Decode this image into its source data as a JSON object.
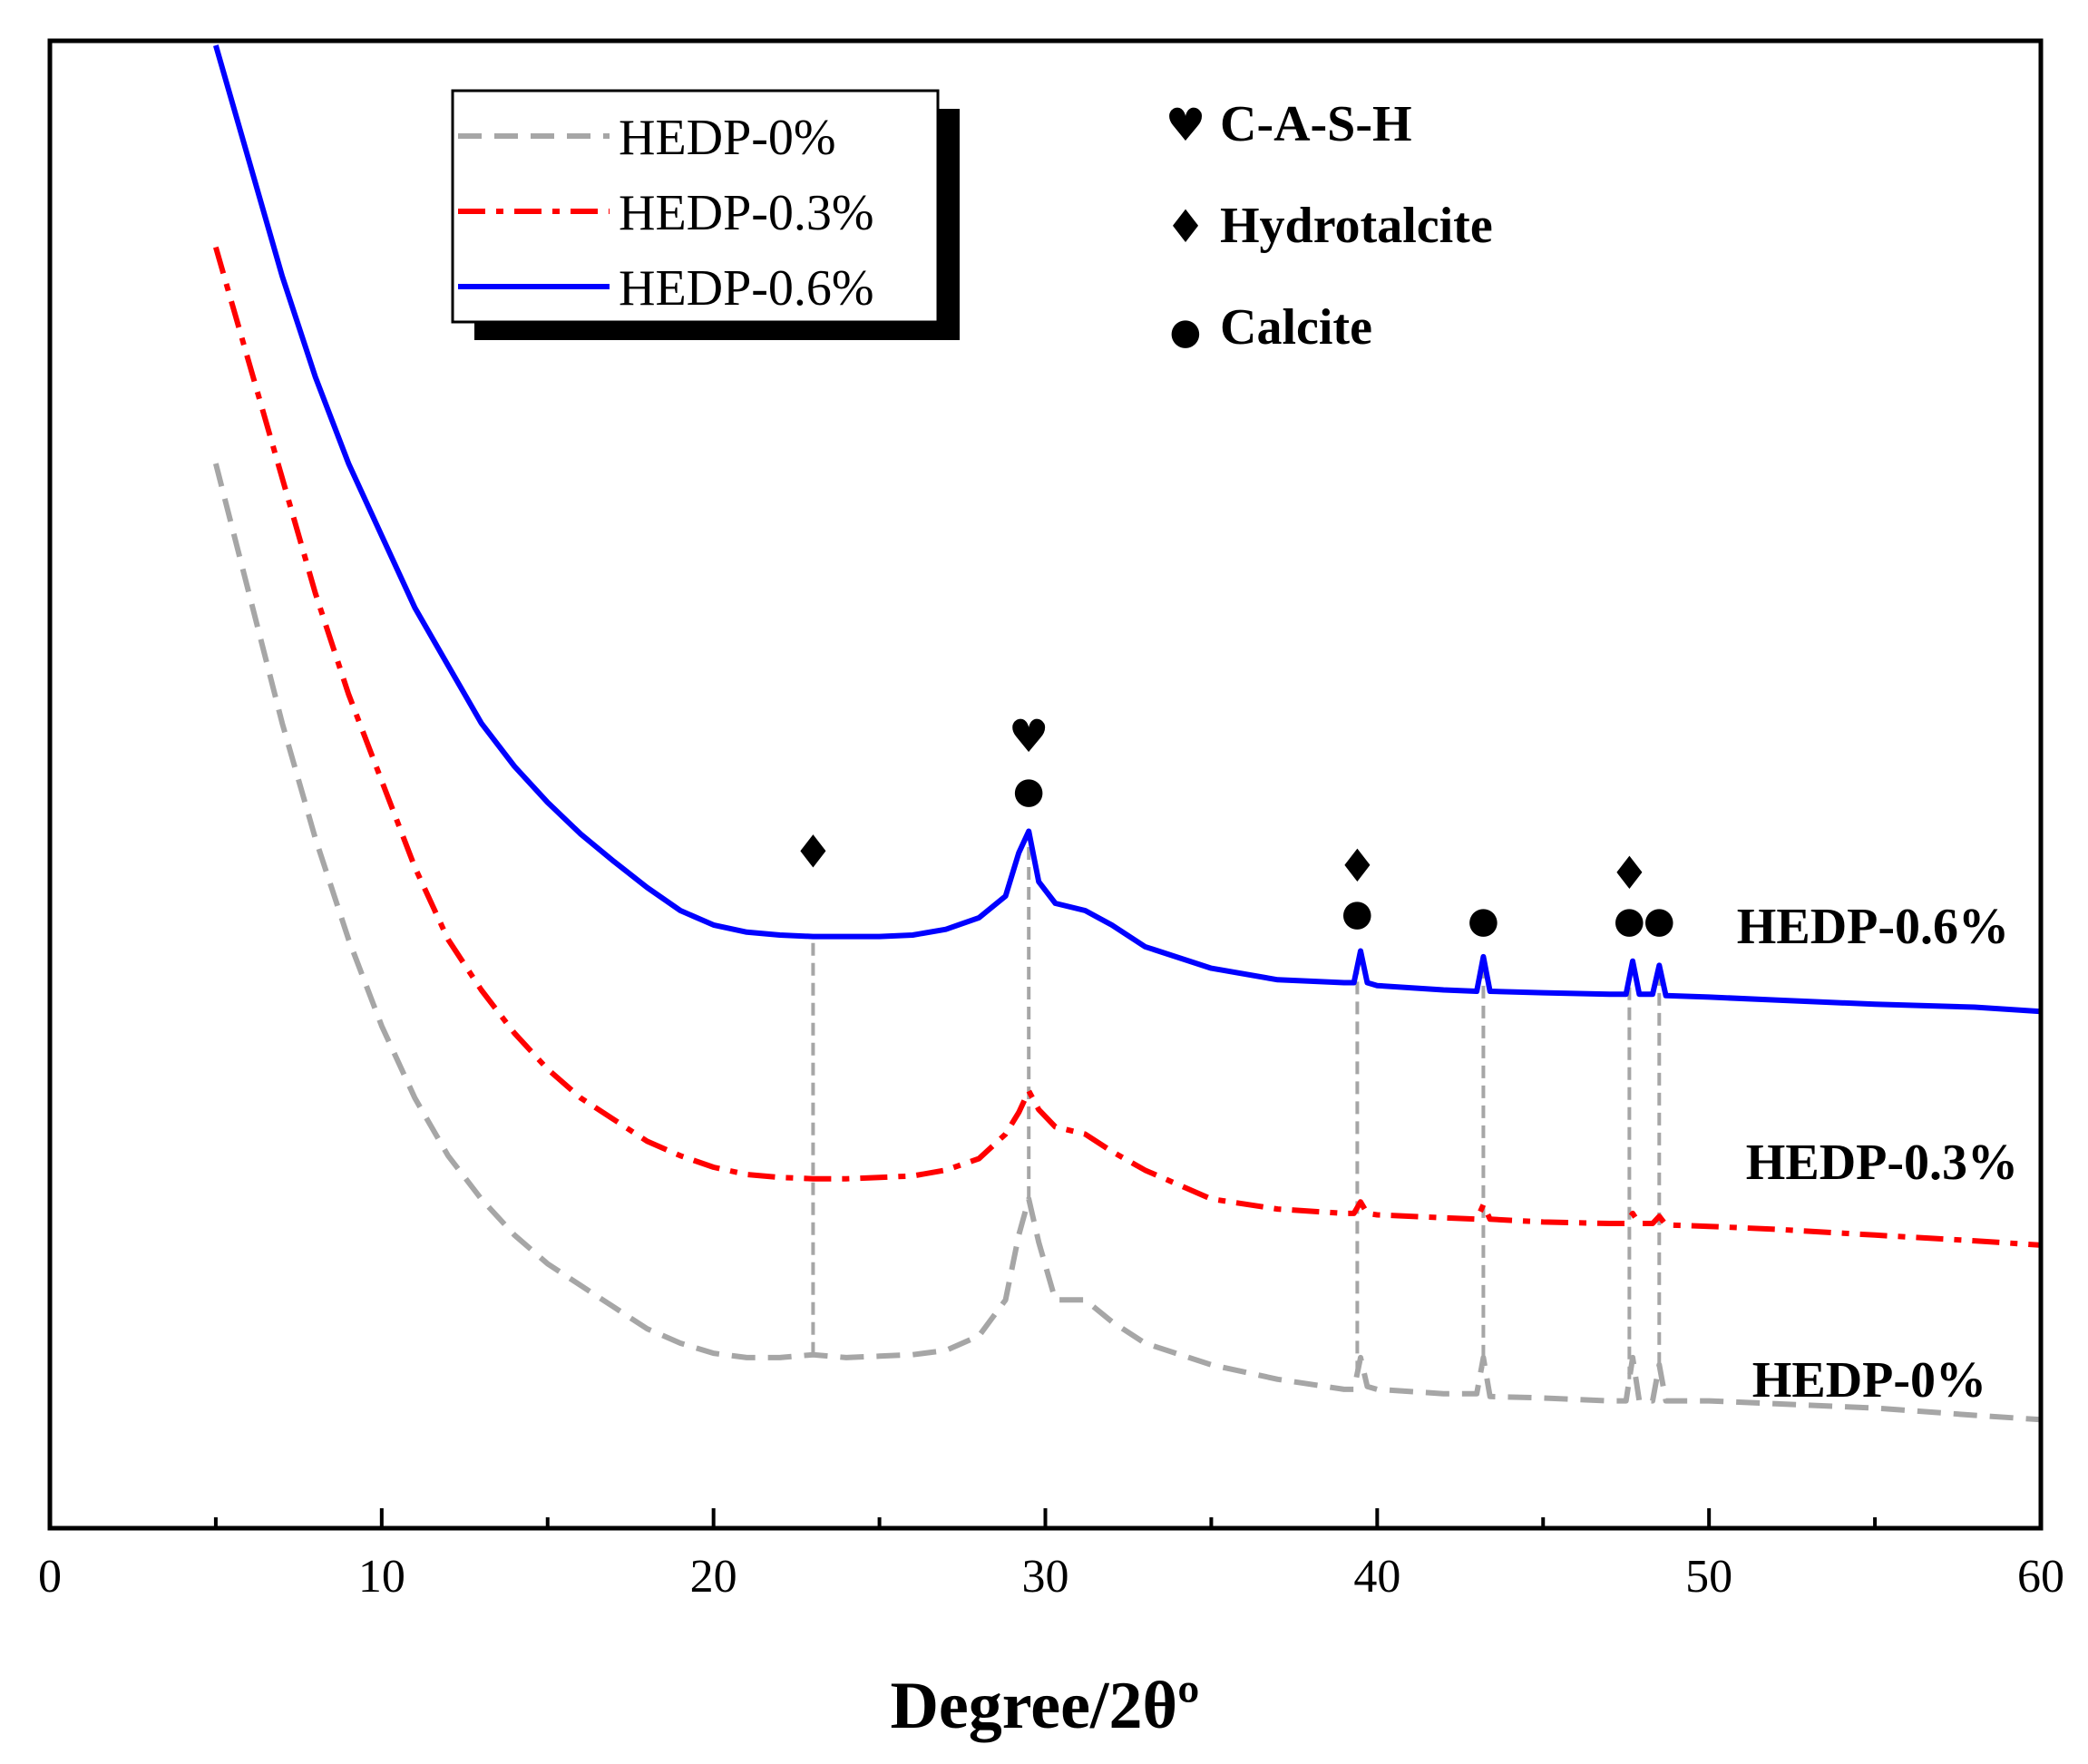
{
  "chart_data": {
    "type": "line",
    "title": "",
    "xlabel": "Degree/2θº",
    "ylabel": "",
    "xlim": [
      0,
      60
    ],
    "ylim": [
      0,
      1
    ],
    "xticks": [
      0,
      10,
      20,
      30,
      40,
      50,
      60
    ],
    "grid": false,
    "legend": {
      "position": "top-left",
      "entries": [
        "HEDP-0%",
        "HEDP-0.3%",
        "HEDP-0.6%"
      ]
    },
    "series": [
      {
        "name": "HEDP-0%",
        "color": "#a6a6a6",
        "style": "dashed",
        "end_label": "HEDP-0%",
        "x": [
          5,
          6,
          7,
          8,
          9,
          10,
          11,
          12,
          13,
          14,
          15,
          16,
          17,
          18,
          19,
          20,
          21,
          22,
          23,
          24,
          25,
          26,
          27,
          28,
          28.8,
          29.2,
          29.5,
          29.8,
          30.3,
          31.2,
          32,
          33,
          35,
          37,
          39,
          39.3,
          39.5,
          39.7,
          40,
          42,
          43,
          43.2,
          43.4,
          45,
          47,
          47.5,
          47.7,
          47.9,
          48.3,
          48.5,
          48.7,
          50,
          52,
          55,
          58,
          60
        ],
        "y": [
          0.71,
          0.62,
          0.53,
          0.45,
          0.38,
          0.32,
          0.27,
          0.23,
          0.2,
          0.175,
          0.155,
          0.14,
          0.125,
          0.11,
          0.1,
          0.093,
          0.09,
          0.09,
          0.092,
          0.09,
          0.091,
          0.092,
          0.095,
          0.105,
          0.13,
          0.175,
          0.2,
          0.17,
          0.13,
          0.13,
          0.115,
          0.1,
          0.085,
          0.075,
          0.068,
          0.068,
          0.09,
          0.07,
          0.068,
          0.065,
          0.065,
          0.09,
          0.063,
          0.062,
          0.06,
          0.06,
          0.09,
          0.06,
          0.06,
          0.085,
          0.06,
          0.06,
          0.058,
          0.055,
          0.05,
          0.047
        ]
      },
      {
        "name": "HEDP-0.3%",
        "color": "#ff0000",
        "style": "dash-dot",
        "end_label": "HEDP-0.3%",
        "x": [
          5,
          6,
          7,
          8,
          9,
          10,
          11,
          12,
          13,
          14,
          15,
          16,
          17,
          18,
          19,
          20,
          21,
          22,
          23,
          24,
          25,
          26,
          27,
          28,
          28.8,
          29.2,
          29.5,
          29.8,
          30.3,
          31.2,
          32,
          33,
          35,
          37,
          39,
          39.3,
          39.5,
          39.7,
          40,
          42,
          43,
          43.2,
          43.4,
          45,
          47,
          47.5,
          47.7,
          47.9,
          48.3,
          48.5,
          48.7,
          50,
          52,
          55,
          58,
          60
        ],
        "y": [
          0.86,
          0.78,
          0.7,
          0.62,
          0.55,
          0.49,
          0.43,
          0.38,
          0.345,
          0.315,
          0.29,
          0.27,
          0.255,
          0.24,
          0.23,
          0.222,
          0.217,
          0.215,
          0.214,
          0.214,
          0.215,
          0.216,
          0.22,
          0.228,
          0.245,
          0.26,
          0.275,
          0.262,
          0.25,
          0.245,
          0.233,
          0.22,
          0.2,
          0.193,
          0.19,
          0.19,
          0.198,
          0.19,
          0.189,
          0.187,
          0.186,
          0.196,
          0.186,
          0.184,
          0.183,
          0.183,
          0.19,
          0.183,
          0.183,
          0.188,
          0.182,
          0.181,
          0.179,
          0.175,
          0.171,
          0.168
        ]
      },
      {
        "name": "HEDP-0.6%",
        "color": "#0000ff",
        "style": "solid",
        "end_label": "HEDP-0.6%",
        "x": [
          5,
          6,
          7,
          8,
          9,
          10,
          11,
          12,
          13,
          14,
          15,
          16,
          17,
          18,
          19,
          20,
          21,
          22,
          23,
          24,
          25,
          26,
          27,
          28,
          28.8,
          29.2,
          29.5,
          29.8,
          30.3,
          31.2,
          32,
          33,
          35,
          37,
          39,
          39.3,
          39.5,
          39.7,
          40,
          42,
          43,
          43.2,
          43.4,
          45,
          47,
          47.5,
          47.7,
          47.9,
          48.3,
          48.5,
          48.7,
          50,
          52,
          55,
          58,
          60
        ],
        "y": [
          1.0,
          0.92,
          0.84,
          0.77,
          0.71,
          0.66,
          0.61,
          0.57,
          0.53,
          0.5,
          0.475,
          0.453,
          0.434,
          0.416,
          0.4,
          0.39,
          0.385,
          0.383,
          0.382,
          0.382,
          0.382,
          0.383,
          0.387,
          0.395,
          0.41,
          0.44,
          0.455,
          0.42,
          0.405,
          0.4,
          0.39,
          0.375,
          0.36,
          0.352,
          0.35,
          0.35,
          0.372,
          0.35,
          0.348,
          0.345,
          0.344,
          0.368,
          0.344,
          0.343,
          0.342,
          0.342,
          0.365,
          0.342,
          0.342,
          0.362,
          0.341,
          0.34,
          0.338,
          0.335,
          0.333,
          0.33
        ]
      }
    ],
    "reference_lines": [
      {
        "x": 23,
        "label": "Hydrotalcite"
      },
      {
        "x": 29.5,
        "label": "C-A-S-H / Calcite"
      },
      {
        "x": 39.4,
        "label": "Hydrotalcite / Calcite"
      },
      {
        "x": 43.2,
        "label": "Calcite"
      },
      {
        "x": 47.6,
        "label": "Hydrotalcite / Calcite"
      },
      {
        "x": 48.5,
        "label": "Calcite"
      }
    ],
    "phase_markers": [
      {
        "x": 23,
        "y": 0.43,
        "symbol": "♦"
      },
      {
        "x": 29.5,
        "y": 0.51,
        "symbol": "♥"
      },
      {
        "x": 29.5,
        "y": 0.475,
        "symbol": "●"
      },
      {
        "x": 39.4,
        "y": 0.42,
        "symbol": "♦"
      },
      {
        "x": 39.4,
        "y": 0.39,
        "symbol": "●"
      },
      {
        "x": 43.2,
        "y": 0.385,
        "symbol": "●"
      },
      {
        "x": 47.6,
        "y": 0.415,
        "symbol": "♦"
      },
      {
        "x": 47.6,
        "y": 0.385,
        "symbol": "●"
      },
      {
        "x": 48.5,
        "y": 0.385,
        "symbol": "●"
      }
    ],
    "phase_key": [
      {
        "symbol": "♥",
        "label": "C-A-S-H"
      },
      {
        "symbol": "♦",
        "label": "Hydrotalcite"
      },
      {
        "symbol": "●",
        "label": "Calcite"
      }
    ]
  }
}
